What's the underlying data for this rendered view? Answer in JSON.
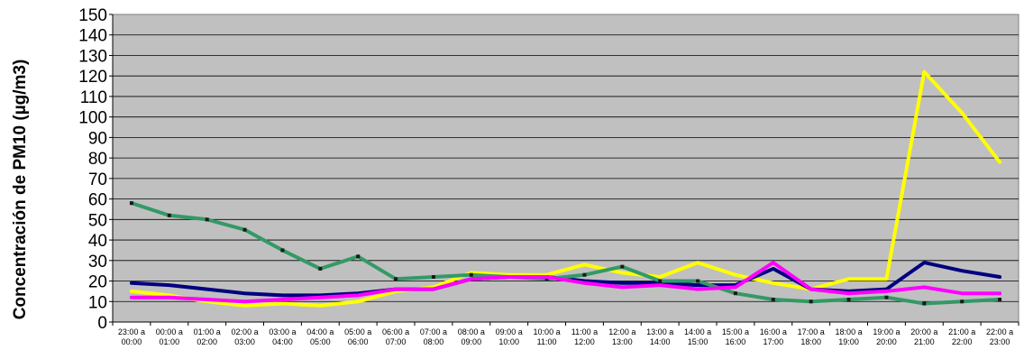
{
  "chart_data": {
    "type": "line",
    "title": "",
    "xlabel": "",
    "ylabel": "Concentración de PM10 (µg/m3)",
    "ylim": [
      0,
      150
    ],
    "ytick_step": 10,
    "grid": true,
    "plot_background": "#c0c0c0",
    "categories": [
      [
        "23:00 a",
        "00:00"
      ],
      [
        "00:00 a",
        "01:00"
      ],
      [
        "01:00 a",
        "02:00"
      ],
      [
        "02:00 a",
        "03:00"
      ],
      [
        "03:00 a",
        "04:00"
      ],
      [
        "04:00 a",
        "05:00"
      ],
      [
        "05:00 a",
        "06:00"
      ],
      [
        "06:00 a",
        "07:00"
      ],
      [
        "07:00 a",
        "08:00"
      ],
      [
        "08:00 a",
        "09:00"
      ],
      [
        "09:00 a",
        "10:00"
      ],
      [
        "10:00 a",
        "11:00"
      ],
      [
        "11:00 a",
        "12:00"
      ],
      [
        "12:00 a",
        "13:00"
      ],
      [
        "13:00 a",
        "14:00"
      ],
      [
        "14:00 a",
        "15:00"
      ],
      [
        "15:00 a",
        "16:00"
      ],
      [
        "16:00 a",
        "17:00"
      ],
      [
        "17:00 a",
        "18:00"
      ],
      [
        "18:00 a",
        "19:00"
      ],
      [
        "19:00 a",
        "20:00"
      ],
      [
        "20:00 a",
        "21:00"
      ],
      [
        "21:00 a",
        "22:00"
      ],
      [
        "22:00 a",
        "23:00"
      ]
    ],
    "series": [
      {
        "color": "#ffff00",
        "markers": false,
        "values": [
          15,
          13,
          10,
          8,
          9,
          8,
          10,
          15,
          17,
          24,
          23,
          23,
          28,
          24,
          22,
          29,
          23,
          19,
          16,
          21,
          21,
          122,
          102,
          78
        ]
      },
      {
        "color": "#000080",
        "markers": false,
        "values": [
          19,
          18,
          16,
          14,
          13,
          13,
          14,
          16,
          16,
          21,
          22,
          22,
          20,
          19,
          19,
          18,
          18,
          26,
          16,
          15,
          16,
          29,
          25,
          22
        ]
      },
      {
        "color": "#339966",
        "markers": true,
        "values": [
          58,
          52,
          50,
          45,
          35,
          26,
          32,
          21,
          22,
          23,
          22,
          21,
          23,
          27,
          20,
          20,
          14,
          11,
          10,
          11,
          12,
          9,
          10,
          11
        ]
      },
      {
        "color": "#ff00ff",
        "markers": false,
        "values": [
          12,
          12,
          11,
          10,
          11,
          12,
          13,
          16,
          16,
          21,
          22,
          22,
          19,
          17,
          18,
          16,
          17,
          29,
          16,
          14,
          15,
          17,
          14,
          14
        ]
      }
    ]
  }
}
